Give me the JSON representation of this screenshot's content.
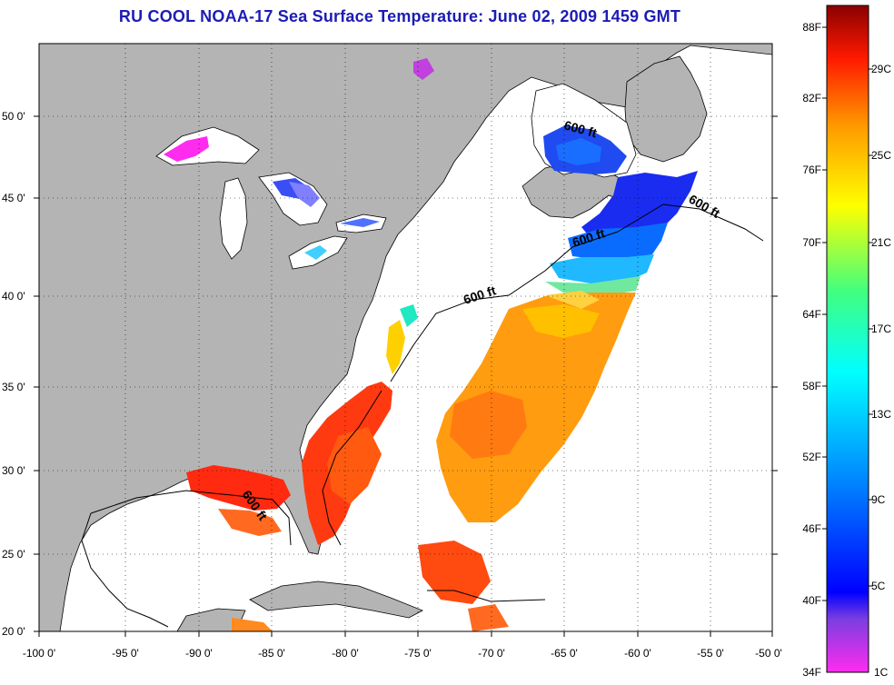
{
  "title": "RU COOL  NOAA-17  Sea Surface Temperature:  June 02, 2009 1459 GMT",
  "map": {
    "lon_ticks": [
      "-100 0'",
      "-95 0'",
      "-90 0'",
      "-85 0'",
      "-80 0'",
      "-75 0'",
      "-70 0'",
      "-65 0'",
      "-60 0'",
      "-55 0'",
      "-50 0'"
    ],
    "lat_ticks": [
      "50 0'",
      "45 0'",
      "40 0'",
      "35 0'",
      "30 0'",
      "25 0'",
      "20 0'"
    ],
    "contour_labels": [
      "600 ft",
      "600 ft",
      "600 ft",
      "600 ft",
      "600 ft"
    ],
    "colors": {
      "land": "#b4b4b4",
      "ocean": "#ffffff"
    }
  },
  "colorbar": {
    "f_labels": [
      "88F",
      "82F",
      "76F",
      "70F",
      "64F",
      "58F",
      "52F",
      "46F",
      "40F",
      "34F"
    ],
    "c_labels": [
      "29C",
      "25C",
      "21C",
      "17C",
      "13C",
      "9C",
      "5C",
      "1C"
    ]
  }
}
